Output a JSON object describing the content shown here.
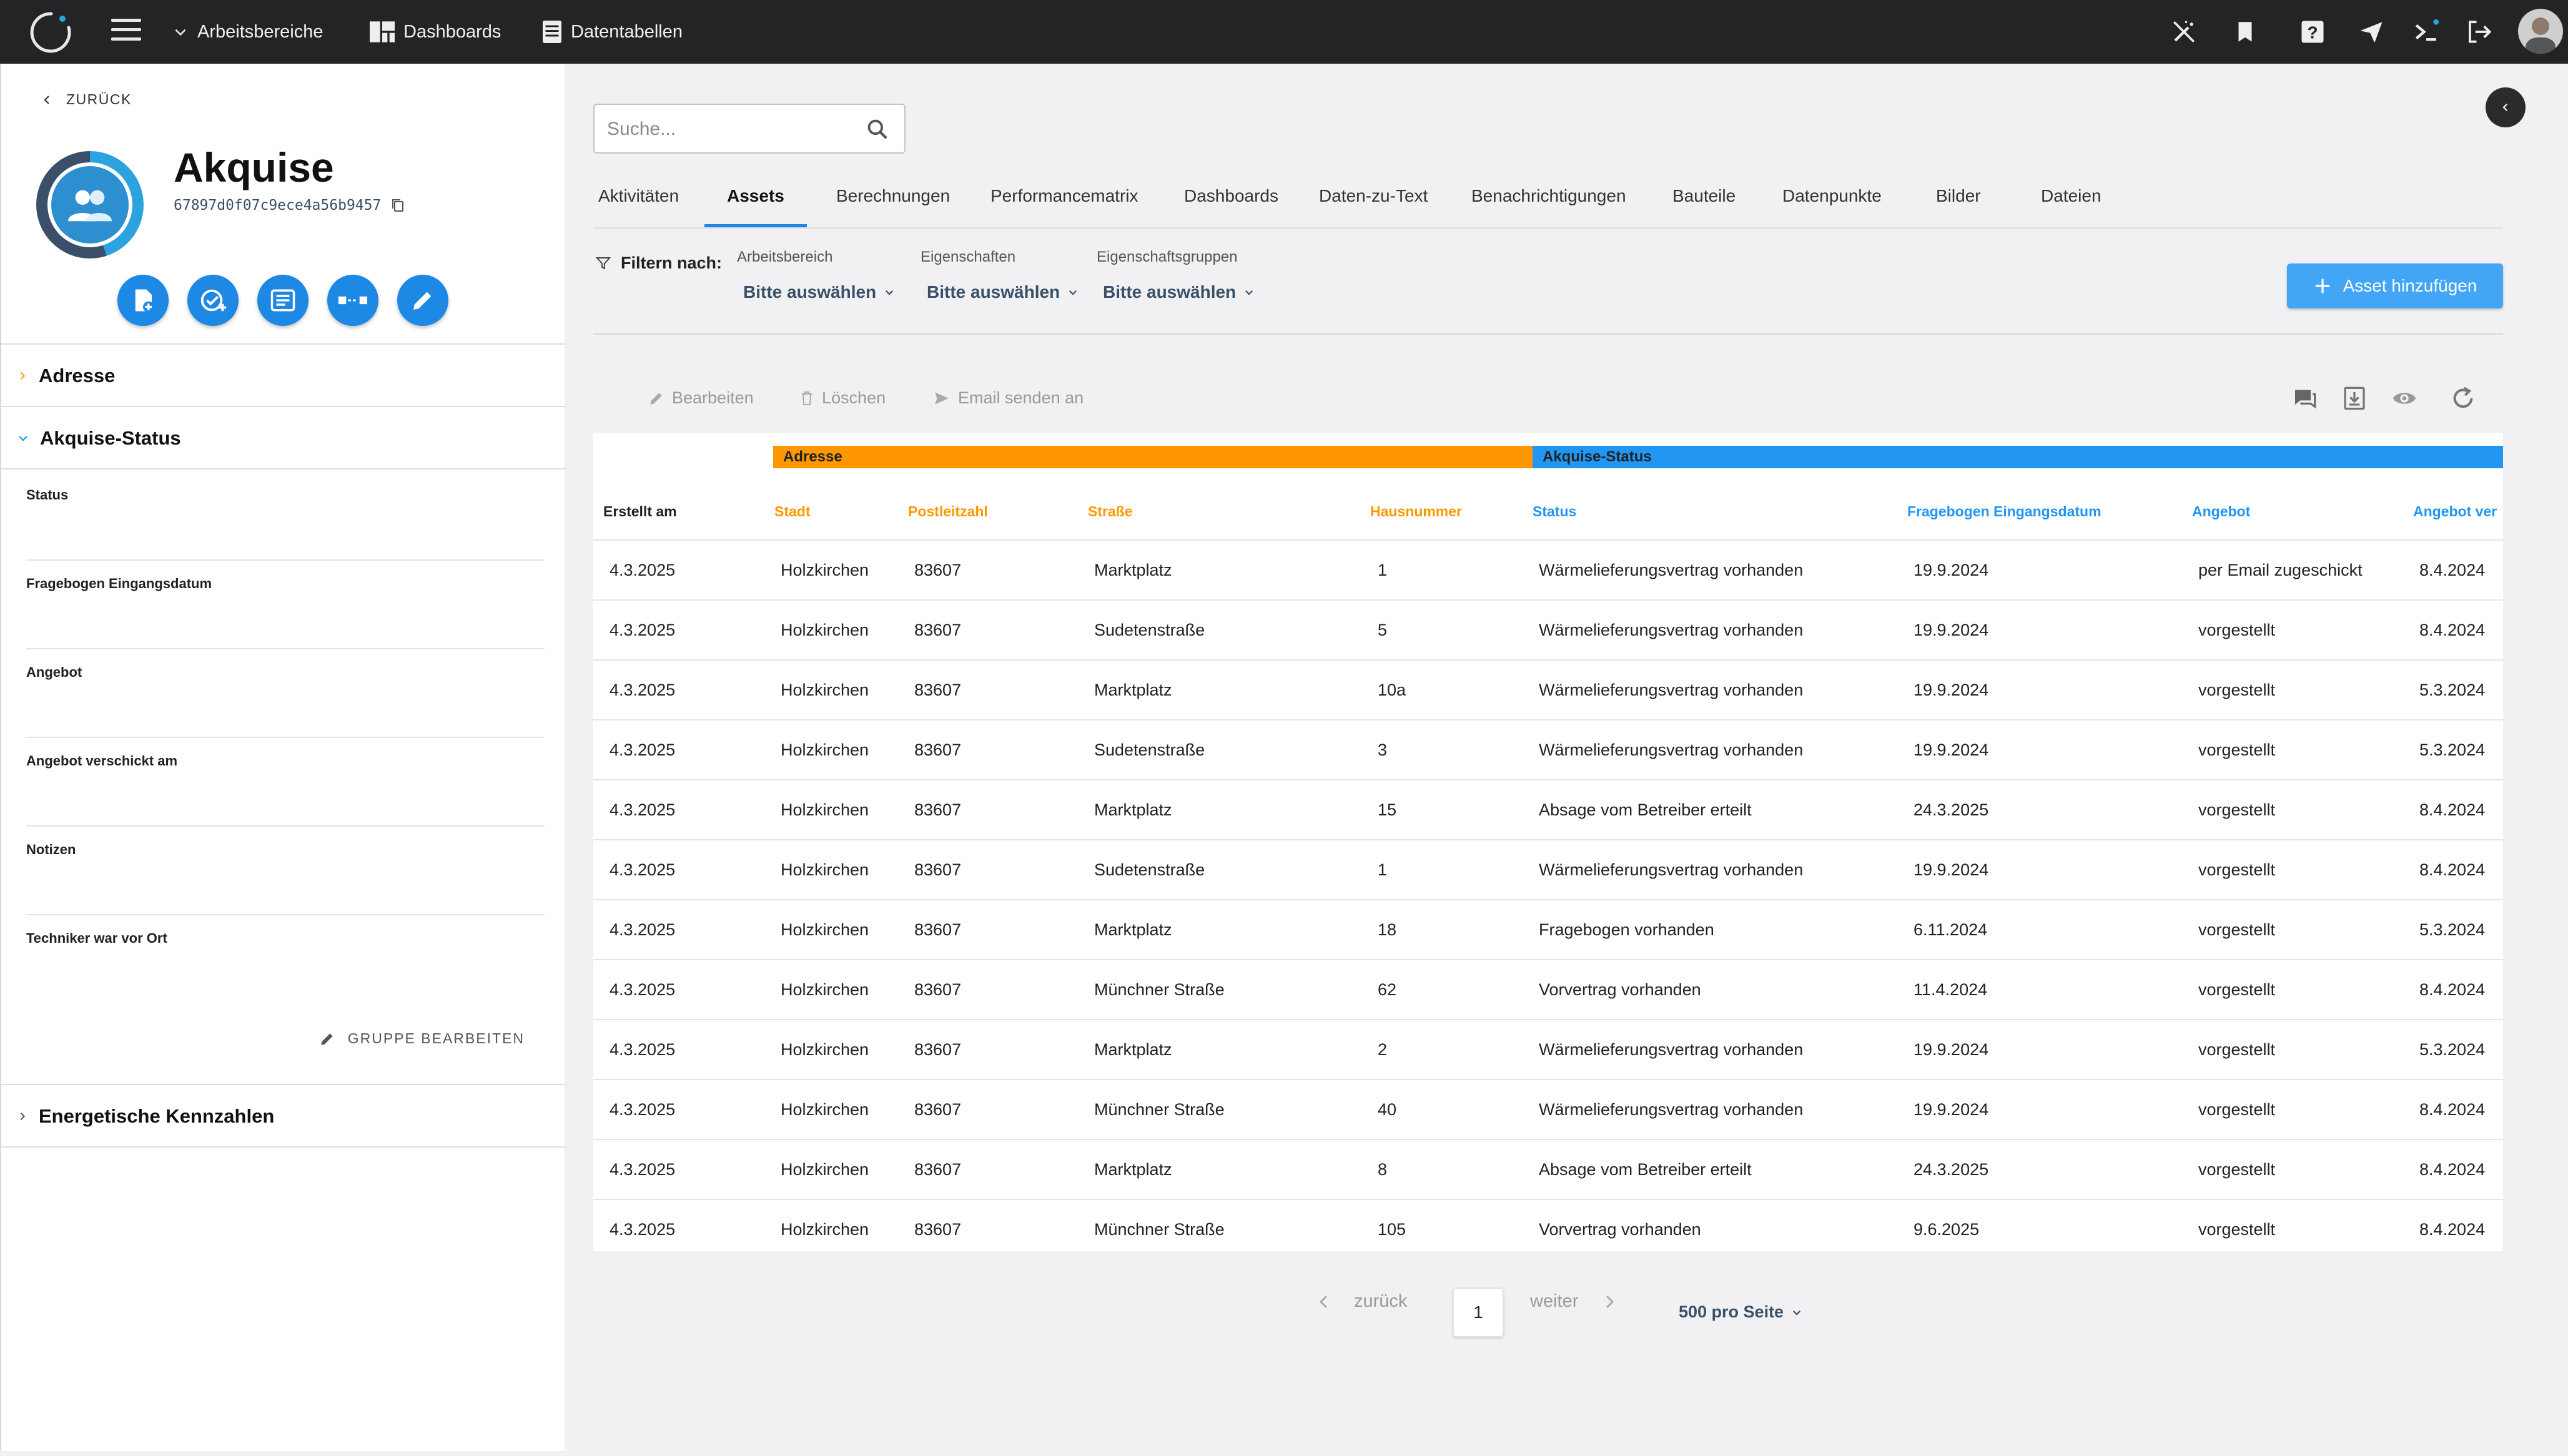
{
  "topbar": {
    "workspaces_label": "Arbeitsbereiche",
    "dashboards_label": "Dashboards",
    "datatables_label": "Datentabellen"
  },
  "sidebar": {
    "back_label": "ZURÜCK",
    "title": "Akquise",
    "object_id": "67897d0f07c9ece4a56b9457",
    "groups": [
      {
        "label": "Adresse",
        "expanded": false
      },
      {
        "label": "Akquise-Status",
        "expanded": true
      },
      {
        "label": "Energetische Kennzahlen",
        "expanded": false
      }
    ],
    "fields": [
      {
        "label": "Status"
      },
      {
        "label": "Fragebogen Eingangsdatum"
      },
      {
        "label": "Angebot"
      },
      {
        "label": "Angebot verschickt am"
      },
      {
        "label": "Notizen"
      },
      {
        "label": "Techniker war vor Ort"
      }
    ],
    "edit_group_label": "GRUPPE BEARBEITEN"
  },
  "search": {
    "placeholder": "Suche..."
  },
  "tabs": [
    {
      "label": "Aktivitäten",
      "active": false
    },
    {
      "label": "Assets",
      "active": true
    },
    {
      "label": "Berechnungen",
      "active": false
    },
    {
      "label": "Performancematrix",
      "active": false
    },
    {
      "label": "Dashboards",
      "active": false
    },
    {
      "label": "Daten-zu-Text",
      "active": false
    },
    {
      "label": "Benachrichtigungen",
      "active": false
    },
    {
      "label": "Bauteile",
      "active": false
    },
    {
      "label": "Datenpunkte",
      "active": false
    },
    {
      "label": "Bilder",
      "active": false
    },
    {
      "label": "Dateien",
      "active": false
    }
  ],
  "filters": {
    "label": "Filtern nach:",
    "items": [
      {
        "label": "Arbeitsbereich",
        "value": "Bitte auswählen"
      },
      {
        "label": "Eigenschaften",
        "value": "Bitte auswählen"
      },
      {
        "label": "Eigenschaftsgruppen",
        "value": "Bitte auswählen"
      }
    ]
  },
  "add_asset_label": "Asset hinzufügen",
  "toolbar": {
    "edit_label": "Bearbeiten",
    "delete_label": "Löschen",
    "email_label": "Email senden an"
  },
  "table": {
    "group_address": "Adresse",
    "group_status": "Akquise-Status",
    "headers": [
      "Erstellt am",
      "Stadt",
      "Postleitzahl",
      "Straße",
      "Hausnummer",
      "Status",
      "Fragebogen Eingangsdatum",
      "Angebot",
      "Angebot ver"
    ],
    "rows": [
      [
        "4.3.2025",
        "Holzkirchen",
        "83607",
        "Marktplatz",
        "1",
        "Wärmelieferungsvertrag vorhanden",
        "19.9.2024",
        "per Email zugeschickt",
        "8.4.2024"
      ],
      [
        "4.3.2025",
        "Holzkirchen",
        "83607",
        "Sudetenstraße",
        "5",
        "Wärmelieferungsvertrag vorhanden",
        "19.9.2024",
        "vorgestellt",
        "8.4.2024"
      ],
      [
        "4.3.2025",
        "Holzkirchen",
        "83607",
        "Marktplatz",
        "10a",
        "Wärmelieferungsvertrag vorhanden",
        "19.9.2024",
        "vorgestellt",
        "5.3.2024"
      ],
      [
        "4.3.2025",
        "Holzkirchen",
        "83607",
        "Sudetenstraße",
        "3",
        "Wärmelieferungsvertrag vorhanden",
        "19.9.2024",
        "vorgestellt",
        "5.3.2024"
      ],
      [
        "4.3.2025",
        "Holzkirchen",
        "83607",
        "Marktplatz",
        "15",
        "Absage vom Betreiber erteilt",
        "24.3.2025",
        "vorgestellt",
        "8.4.2024"
      ],
      [
        "4.3.2025",
        "Holzkirchen",
        "83607",
        "Sudetenstraße",
        "1",
        "Wärmelieferungsvertrag vorhanden",
        "19.9.2024",
        "vorgestellt",
        "8.4.2024"
      ],
      [
        "4.3.2025",
        "Holzkirchen",
        "83607",
        "Marktplatz",
        "18",
        "Fragebogen vorhanden",
        "6.11.2024",
        "vorgestellt",
        "5.3.2024"
      ],
      [
        "4.3.2025",
        "Holzkirchen",
        "83607",
        "Münchner Straße",
        "62",
        "Vorvertrag vorhanden",
        "11.4.2024",
        "vorgestellt",
        "8.4.2024"
      ],
      [
        "4.3.2025",
        "Holzkirchen",
        "83607",
        "Marktplatz",
        "2",
        "Wärmelieferungsvertrag vorhanden",
        "19.9.2024",
        "vorgestellt",
        "5.3.2024"
      ],
      [
        "4.3.2025",
        "Holzkirchen",
        "83607",
        "Münchner Straße",
        "40",
        "Wärmelieferungsvertrag vorhanden",
        "19.9.2024",
        "vorgestellt",
        "8.4.2024"
      ],
      [
        "4.3.2025",
        "Holzkirchen",
        "83607",
        "Marktplatz",
        "8",
        "Absage vom Betreiber erteilt",
        "24.3.2025",
        "vorgestellt",
        "8.4.2024"
      ],
      [
        "4.3.2025",
        "Holzkirchen",
        "83607",
        "Münchner Straße",
        "105",
        "Vorvertrag vorhanden",
        "9.6.2025",
        "vorgestellt",
        "8.4.2024"
      ]
    ]
  },
  "pagination": {
    "prev_label": "zurück",
    "next_label": "weiter",
    "current_page": "1",
    "per_page_label": "500 pro Seite"
  },
  "colors": {
    "topbar": "#242426",
    "accent": "#1e88e5",
    "address_group": "#ff9800",
    "status_group": "#2196f3",
    "add_button": "#42a5f5"
  }
}
